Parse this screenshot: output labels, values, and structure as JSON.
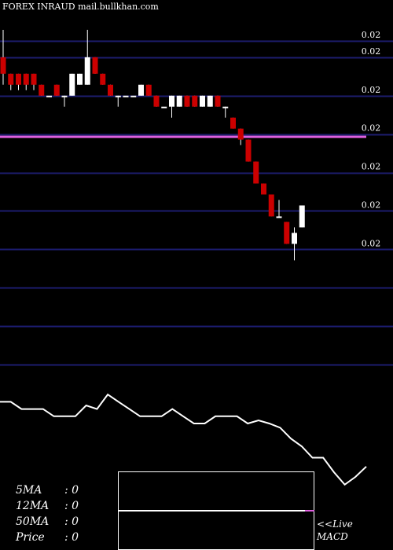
{
  "header": {
    "symbol": "FOREX  INRAUD",
    "site": "mail.bullkhan.com"
  },
  "colors": {
    "background": "#000000",
    "grid": "#1c1c6e",
    "bear": "#cc0000",
    "bull": "#ffffff",
    "wick": "#ffffff",
    "ma_line": "#e060e0",
    "indicator": "#ffffff"
  },
  "chart_data": {
    "type": "candlestick",
    "y_tick_labels": [
      "0.02",
      "0.02",
      "0.02",
      "0.02",
      "0.02",
      "0.02",
      "0.02"
    ],
    "ylim": [
      0.0144,
      0.0212
    ],
    "y_gridlines": [
      0.0206,
      0.0203,
      0.0196,
      0.0189,
      0.0182,
      0.0175,
      0.0168,
      0.0161,
      0.0154,
      0.0147
    ],
    "y_tick_values": [
      0.0206,
      0.0203,
      0.0196,
      0.0189,
      0.0182,
      0.0175,
      0.0168
    ],
    "moving_average_level": 0.01885,
    "candles": [
      {
        "o": 0.0203,
        "h": 0.0208,
        "l": 0.0198,
        "c": 0.02
      },
      {
        "o": 0.02,
        "h": 0.02,
        "l": 0.0197,
        "c": 0.0198
      },
      {
        "o": 0.02,
        "h": 0.02,
        "l": 0.0197,
        "c": 0.0198
      },
      {
        "o": 0.02,
        "h": 0.02,
        "l": 0.0197,
        "c": 0.0198
      },
      {
        "o": 0.02,
        "h": 0.02,
        "l": 0.0197,
        "c": 0.0198
      },
      {
        "o": 0.0198,
        "h": 0.0198,
        "l": 0.0196,
        "c": 0.0196
      },
      {
        "o": 0.0196,
        "h": 0.0196,
        "l": 0.0196,
        "c": 0.0196
      },
      {
        "o": 0.0198,
        "h": 0.0198,
        "l": 0.0196,
        "c": 0.0196
      },
      {
        "o": 0.0196,
        "h": 0.0196,
        "l": 0.0194,
        "c": 0.0196
      },
      {
        "o": 0.0196,
        "h": 0.02,
        "l": 0.0196,
        "c": 0.02
      },
      {
        "o": 0.0198,
        "h": 0.02,
        "l": 0.0198,
        "c": 0.02
      },
      {
        "o": 0.0198,
        "h": 0.0208,
        "l": 0.0198,
        "c": 0.0203
      },
      {
        "o": 0.0203,
        "h": 0.0203,
        "l": 0.02,
        "c": 0.02
      },
      {
        "o": 0.02,
        "h": 0.02,
        "l": 0.0198,
        "c": 0.0198
      },
      {
        "o": 0.0198,
        "h": 0.0198,
        "l": 0.0196,
        "c": 0.0196
      },
      {
        "o": 0.0196,
        "h": 0.0196,
        "l": 0.0194,
        "c": 0.0196
      },
      {
        "o": 0.0196,
        "h": 0.0196,
        "l": 0.0196,
        "c": 0.0196
      },
      {
        "o": 0.0196,
        "h": 0.0196,
        "l": 0.0196,
        "c": 0.0196
      },
      {
        "o": 0.0196,
        "h": 0.0198,
        "l": 0.0196,
        "c": 0.0198
      },
      {
        "o": 0.0198,
        "h": 0.0198,
        "l": 0.0196,
        "c": 0.0196
      },
      {
        "o": 0.0196,
        "h": 0.0196,
        "l": 0.0194,
        "c": 0.0194
      },
      {
        "o": 0.0194,
        "h": 0.0194,
        "l": 0.0194,
        "c": 0.0194
      },
      {
        "o": 0.0194,
        "h": 0.0196,
        "l": 0.0192,
        "c": 0.0196
      },
      {
        "o": 0.0194,
        "h": 0.0196,
        "l": 0.0194,
        "c": 0.0196
      },
      {
        "o": 0.0196,
        "h": 0.0196,
        "l": 0.0194,
        "c": 0.0194
      },
      {
        "o": 0.0196,
        "h": 0.0196,
        "l": 0.0194,
        "c": 0.0194
      },
      {
        "o": 0.0194,
        "h": 0.0196,
        "l": 0.0194,
        "c": 0.0196
      },
      {
        "o": 0.0194,
        "h": 0.0196,
        "l": 0.0194,
        "c": 0.0196
      },
      {
        "o": 0.0196,
        "h": 0.0196,
        "l": 0.0194,
        "c": 0.0194
      },
      {
        "o": 0.0194,
        "h": 0.0194,
        "l": 0.0192,
        "c": 0.0194
      },
      {
        "o": 0.0192,
        "h": 0.0192,
        "l": 0.019,
        "c": 0.019
      },
      {
        "o": 0.019,
        "h": 0.019,
        "l": 0.0187,
        "c": 0.0188
      },
      {
        "o": 0.0188,
        "h": 0.0188,
        "l": 0.0184,
        "c": 0.0184
      },
      {
        "o": 0.0184,
        "h": 0.0184,
        "l": 0.018,
        "c": 0.018
      },
      {
        "o": 0.018,
        "h": 0.018,
        "l": 0.0178,
        "c": 0.0178
      },
      {
        "o": 0.0178,
        "h": 0.0178,
        "l": 0.0174,
        "c": 0.0174
      },
      {
        "o": 0.0174,
        "h": 0.0177,
        "l": 0.0174,
        "c": 0.0174
      },
      {
        "o": 0.0173,
        "h": 0.0173,
        "l": 0.0169,
        "c": 0.0169
      },
      {
        "o": 0.0169,
        "h": 0.0172,
        "l": 0.0166,
        "c": 0.0171
      },
      {
        "o": 0.0172,
        "h": 0.0176,
        "l": 0.0172,
        "c": 0.0176
      }
    ],
    "price_line": [
      1.0,
      1.0,
      0.86,
      0.86,
      0.86,
      0.72,
      0.72,
      0.72,
      0.93,
      0.86,
      1.14,
      1.0,
      0.86,
      0.72,
      0.72,
      0.72,
      0.86,
      0.72,
      0.58,
      0.58,
      0.72,
      0.72,
      0.72,
      0.58,
      0.64,
      0.58,
      0.5,
      0.29,
      0.14,
      -0.08,
      -0.08,
      -0.36,
      -0.6,
      -0.45,
      -0.25
    ]
  },
  "indicators": {
    "ma5": {
      "label": "5MA",
      "value": ": 0"
    },
    "ma12": {
      "label": "12MA",
      "value": ": 0"
    },
    "ma50": {
      "label": "50MA",
      "value": ": 0"
    },
    "price": {
      "label": "Price",
      "value": "  : 0"
    }
  },
  "macd": {
    "label_line1": "<<Live",
    "label_line2": "MACD"
  }
}
